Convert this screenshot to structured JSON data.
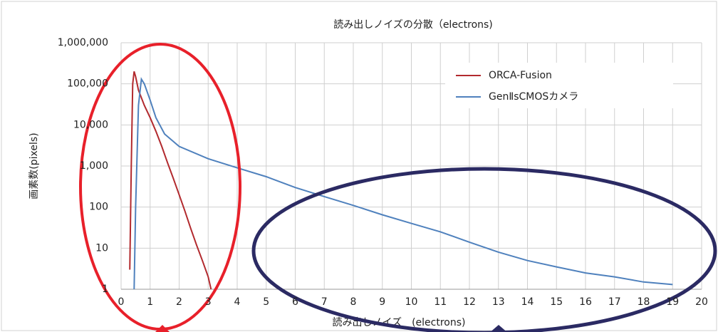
{
  "chart_data": {
    "type": "line",
    "title": "読み出しノイズの分散（electrons)",
    "xlabel": "読み出しノイズ　(electrons)",
    "ylabel": "画素数(pixels)",
    "ylog": true,
    "grid": true,
    "xlim": [
      0,
      20
    ],
    "xticks": [
      0,
      1,
      2,
      3,
      4,
      5,
      6,
      7,
      8,
      9,
      10,
      11,
      12,
      13,
      14,
      15,
      16,
      17,
      18,
      19,
      20
    ],
    "ylim": [
      1,
      1000000
    ],
    "yticks": [
      1,
      10,
      100,
      {
        "value": 1000,
        "label": "1,000"
      },
      {
        "value": 10000,
        "label": "10,000"
      },
      {
        "value": 100000,
        "label": "100,000"
      },
      {
        "value": 1000000,
        "label": "1,000,000"
      }
    ],
    "legend": "upper right",
    "series": [
      {
        "name": "ORCA-Fusion",
        "color": "#b22a2e",
        "x": [
          0.3,
          0.35,
          0.4,
          0.45,
          0.5,
          0.6,
          0.8,
          1.0,
          1.2,
          1.4,
          1.6,
          1.8,
          2.0,
          2.2,
          2.4,
          2.6,
          2.8,
          3.0,
          3.1
        ],
        "values": [
          3,
          1000,
          100000,
          200000,
          150000,
          70000,
          30000,
          15000,
          7000,
          3000,
          1200,
          500,
          200,
          80,
          30,
          12,
          5,
          2,
          1
        ]
      },
      {
        "name": "GenⅡsCMOSカメラ",
        "color": "#4f81bd",
        "x": [
          0.45,
          0.5,
          0.6,
          0.7,
          0.8,
          1.0,
          1.2,
          1.5,
          2,
          3,
          4,
          5,
          6,
          7,
          8,
          9,
          10,
          11,
          12,
          13,
          14,
          15,
          16,
          17,
          18,
          19
        ],
        "values": [
          1,
          100,
          30000,
          130000,
          100000,
          40000,
          15000,
          6000,
          3000,
          1500,
          900,
          550,
          300,
          180,
          110,
          65,
          40,
          25,
          14,
          8,
          5,
          3.5,
          2.5,
          2,
          1.5,
          1.3
        ]
      }
    ]
  }
}
